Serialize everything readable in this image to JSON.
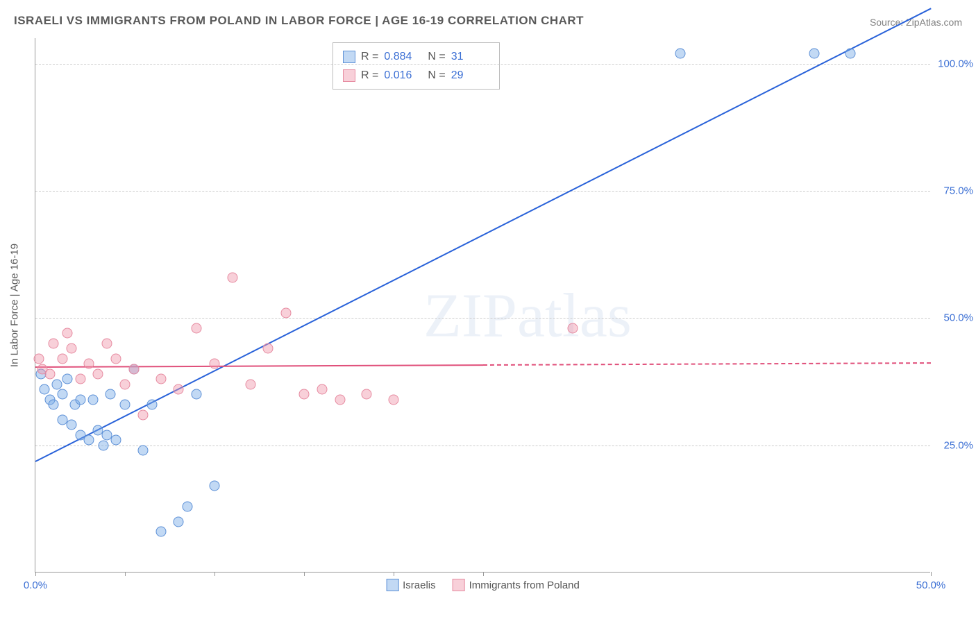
{
  "title": "ISRAELI VS IMMIGRANTS FROM POLAND IN LABOR FORCE | AGE 16-19 CORRELATION CHART",
  "source": "Source: ZipAtlas.com",
  "y_axis_title": "In Labor Force | Age 16-19",
  "watermark": "ZIPatlas",
  "chart": {
    "type": "scatter",
    "background_color": "#ffffff",
    "grid_color": "#cccccc",
    "axis_color": "#999999",
    "text_color": "#5a5a5a",
    "xlim": [
      0,
      50
    ],
    "ylim": [
      0,
      105
    ],
    "x_ticks": [
      0,
      5,
      10,
      15,
      20,
      25,
      50
    ],
    "x_tick_labels": {
      "0": "0.0%",
      "50": "50.0%"
    },
    "x_label_color": "#3b6fd4",
    "y_ticks": [
      25,
      50,
      75,
      100
    ],
    "y_tick_labels": {
      "25": "25.0%",
      "50": "50.0%",
      "75": "75.0%",
      "100": "100.0%"
    },
    "y_label_color": "#3b6fd4",
    "marker_radius": 7.5,
    "series": [
      {
        "name": "Israelis",
        "fill_color": "rgba(120,170,230,0.45)",
        "stroke_color": "#5b8fd6",
        "points": [
          [
            0.3,
            39
          ],
          [
            0.5,
            36
          ],
          [
            0.8,
            34
          ],
          [
            1.0,
            33
          ],
          [
            1.2,
            37
          ],
          [
            1.5,
            30
          ],
          [
            1.5,
            35
          ],
          [
            1.8,
            38
          ],
          [
            2.0,
            29
          ],
          [
            2.2,
            33
          ],
          [
            2.5,
            27
          ],
          [
            2.5,
            34
          ],
          [
            3.0,
            26
          ],
          [
            3.2,
            34
          ],
          [
            3.5,
            28
          ],
          [
            3.8,
            25
          ],
          [
            4.0,
            27
          ],
          [
            4.2,
            35
          ],
          [
            4.5,
            26
          ],
          [
            5.0,
            33
          ],
          [
            5.5,
            40
          ],
          [
            6.0,
            24
          ],
          [
            6.5,
            33
          ],
          [
            7.0,
            8
          ],
          [
            8.0,
            10
          ],
          [
            8.5,
            13
          ],
          [
            9.0,
            35
          ],
          [
            10.0,
            17
          ],
          [
            36.0,
            102
          ],
          [
            43.5,
            102
          ],
          [
            45.5,
            102
          ]
        ],
        "trendline": {
          "color": "#2962d9",
          "y_at_x0": 22,
          "y_at_x50": 111,
          "solid_until_x": 50
        }
      },
      {
        "name": "Immigrants from Poland",
        "fill_color": "rgba(240,150,170,0.45)",
        "stroke_color": "#e68aa0",
        "points": [
          [
            0.2,
            42
          ],
          [
            0.4,
            40
          ],
          [
            0.8,
            39
          ],
          [
            1.0,
            45
          ],
          [
            1.5,
            42
          ],
          [
            1.8,
            47
          ],
          [
            2.0,
            44
          ],
          [
            2.5,
            38
          ],
          [
            3.0,
            41
          ],
          [
            3.5,
            39
          ],
          [
            4.0,
            45
          ],
          [
            4.5,
            42
          ],
          [
            5.0,
            37
          ],
          [
            5.5,
            40
          ],
          [
            6.0,
            31
          ],
          [
            7.0,
            38
          ],
          [
            8.0,
            36
          ],
          [
            9.0,
            48
          ],
          [
            10.0,
            41
          ],
          [
            11.0,
            58
          ],
          [
            12.0,
            37
          ],
          [
            13.0,
            44
          ],
          [
            14.0,
            51
          ],
          [
            15.0,
            35
          ],
          [
            16.0,
            36
          ],
          [
            17.0,
            34
          ],
          [
            18.5,
            35
          ],
          [
            20.0,
            34
          ],
          [
            30.0,
            48
          ]
        ],
        "trendline": {
          "color": "#e04f7a",
          "y_at_x0": 40.5,
          "y_at_x50": 41.3,
          "solid_until_x": 25
        }
      }
    ]
  },
  "rn_legend": {
    "rows": [
      {
        "swatch_fill": "rgba(120,170,230,0.45)",
        "swatch_border": "#5b8fd6",
        "r_label": "R =",
        "r_value": "0.884",
        "r_color": "#3b6fd4",
        "n_label": "N =",
        "n_value": "31",
        "n_color": "#3b6fd4"
      },
      {
        "swatch_fill": "rgba(240,150,170,0.45)",
        "swatch_border": "#e68aa0",
        "r_label": "R =",
        "r_value": "0.016",
        "r_color": "#3b6fd4",
        "n_label": "N =",
        "n_value": "29",
        "n_color": "#3b6fd4"
      }
    ]
  },
  "bottom_legend": {
    "items": [
      {
        "swatch_fill": "rgba(120,170,230,0.45)",
        "swatch_border": "#5b8fd6",
        "label": "Israelis"
      },
      {
        "swatch_fill": "rgba(240,150,170,0.45)",
        "swatch_border": "#e68aa0",
        "label": "Immigrants from Poland"
      }
    ]
  }
}
